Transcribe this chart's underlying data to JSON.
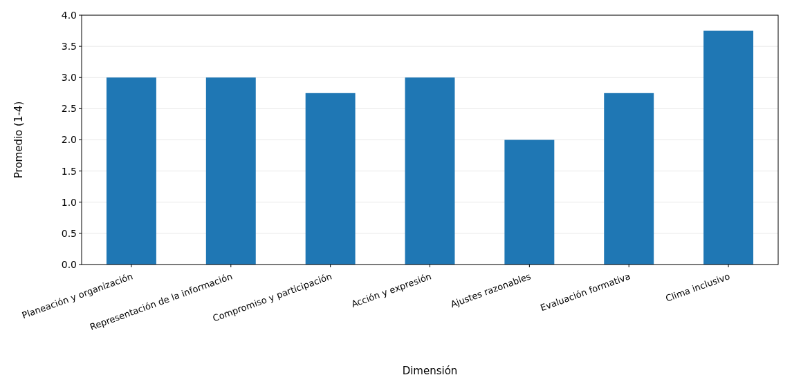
{
  "chart_data": {
    "type": "bar",
    "xlabel": "Dimensión",
    "ylabel": "Promedio (1-4)",
    "categories": [
      "Planeación y organización",
      "Representación de la información",
      "Compromiso y participación",
      "Acción y expresión",
      "Ajustes razonables",
      "Evaluación formativa",
      "Clima inclusivo"
    ],
    "values": [
      3.0,
      3.0,
      2.75,
      3.0,
      2.0,
      2.75,
      3.75
    ],
    "color": "#1f77b4",
    "ylim": [
      0,
      4
    ],
    "yticks": [
      {
        "value": 0,
        "label": "0.0"
      },
      {
        "value": 0.5,
        "label": "0.5"
      },
      {
        "value": 1,
        "label": "1.0"
      },
      {
        "value": 1.5,
        "label": "1.5"
      },
      {
        "value": 2,
        "label": "2.0"
      },
      {
        "value": 2.5,
        "label": "2.5"
      },
      {
        "value": 3,
        "label": "3.0"
      },
      {
        "value": 3.5,
        "label": "3.5"
      },
      {
        "value": 4,
        "label": "4.0"
      }
    ],
    "grid": "y"
  }
}
